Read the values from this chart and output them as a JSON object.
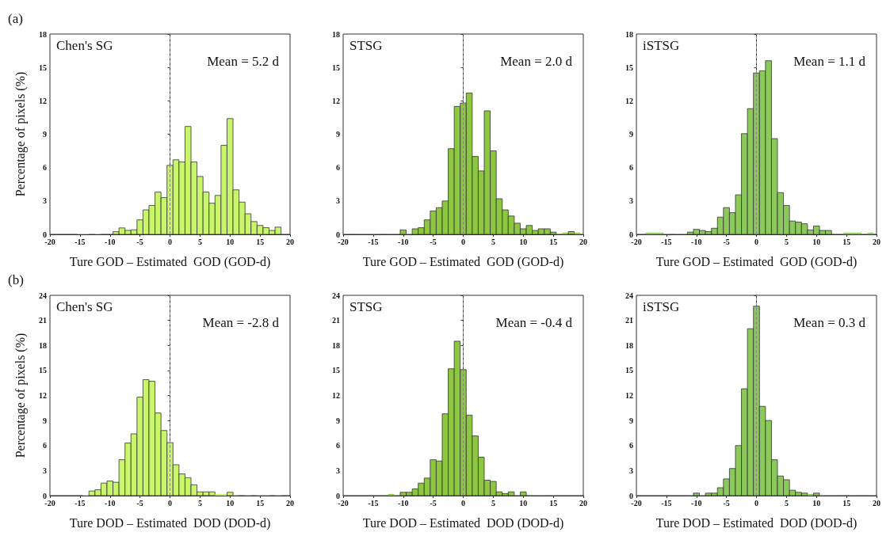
{
  "chart_data": [
    {
      "type": "histogram",
      "color": "#c8f56a",
      "ylabel": "Percentage of pixels (%)",
      "xlabel": "Ture GOD – Estimated  GOD (GOD-d)",
      "annotations": [
        "Chen's SG",
        "Mean = 5.2 d",
        "(a)"
      ],
      "bins": [
        -19.5,
        -18.5,
        -17.5,
        -16.5,
        -15.5,
        -14.5,
        -13.5,
        -12.5,
        -11.5,
        -10.5,
        -9.5,
        -8.5,
        -7.5,
        -6.5,
        -5.5,
        -4.5,
        -3.5,
        -2.5,
        -1.5,
        -0.5,
        0.5,
        1.5,
        2.5,
        3.5,
        4.5,
        5.5,
        6.5,
        7.5,
        8.5,
        9.5,
        10.5,
        11.5,
        12.5,
        13.5,
        14.5,
        15.5,
        16.5,
        17.5,
        18.5,
        19.5
      ],
      "values": [
        0,
        0,
        0,
        0,
        0.05,
        0.05,
        0,
        0.05,
        0,
        0,
        0.24,
        0.58,
        0.36,
        0.41,
        1.3,
        2.2,
        2.6,
        3.8,
        3.3,
        6.2,
        6.7,
        6.5,
        9.7,
        6.5,
        5.2,
        3.8,
        2.8,
        3.5,
        8.0,
        10.4,
        4.0,
        2.9,
        1.85,
        1.15,
        0.8,
        0.6,
        0.35,
        0.65,
        0
      ],
      "xlim": [
        -20,
        20
      ],
      "xticks": [
        -20,
        -15,
        -10,
        -5,
        0,
        5,
        10,
        15,
        20
      ],
      "ylim": [
        0,
        18
      ],
      "yticks": [
        0,
        3,
        6,
        9,
        12,
        15,
        18
      ],
      "ref_lines": [
        {
          "axis": "x",
          "value": 0,
          "color": "#888888",
          "line_style": "dashed"
        }
      ]
    },
    {
      "type": "histogram",
      "color": "#8dc63f",
      "xlabel": "Ture GOD – Estimated  GOD (GOD-d)",
      "annotations": [
        "STSG",
        "Mean = 2.0 d"
      ],
      "bins": [
        -19.5,
        -18.5,
        -17.5,
        -16.5,
        -15.5,
        -14.5,
        -13.5,
        -12.5,
        -11.5,
        -10.5,
        -9.5,
        -8.5,
        -7.5,
        -6.5,
        -5.5,
        -4.5,
        -3.5,
        -2.5,
        -1.5,
        -0.5,
        0.5,
        1.5,
        2.5,
        3.5,
        4.5,
        5.5,
        6.5,
        7.5,
        8.5,
        9.5,
        10.5,
        11.5,
        12.5,
        13.5,
        14.5,
        15.5,
        16.5,
        17.5,
        18.5,
        19.5
      ],
      "values": [
        0,
        0,
        0.05,
        0.05,
        0.05,
        0,
        0,
        0.05,
        0,
        0.4,
        0.05,
        0.5,
        0.6,
        1.3,
        2.1,
        2.4,
        3.0,
        7.7,
        11.5,
        11.8,
        12.7,
        7.0,
        5.7,
        11.1,
        7.5,
        3.2,
        2.2,
        1.65,
        1.0,
        0.5,
        0.8,
        0.35,
        0.5,
        0.5,
        0.2,
        0.05,
        0.15,
        0.25,
        0.15
      ],
      "xlim": [
        -20,
        20
      ],
      "xticks": [
        -20,
        -15,
        -10,
        -5,
        0,
        5,
        10,
        15,
        20
      ],
      "ylim": [
        0,
        18
      ],
      "yticks": [
        0,
        3,
        6,
        9,
        12,
        15,
        18
      ],
      "ref_lines": [
        {
          "axis": "x",
          "value": 0,
          "color": "#888888",
          "line_style": "dashed"
        }
      ]
    },
    {
      "type": "histogram",
      "color": "#8bc95a",
      "xlabel": "Ture GOD – Estimated  GOD (GOD-d)",
      "annotations": [
        "iSTSG",
        "Mean = 1.1 d"
      ],
      "bins": [
        -19.5,
        -18.5,
        -17.5,
        -16.5,
        -15.5,
        -14.5,
        -13.5,
        -12.5,
        -11.5,
        -10.5,
        -9.5,
        -8.5,
        -7.5,
        -6.5,
        -5.5,
        -4.5,
        -3.5,
        -2.5,
        -1.5,
        -0.5,
        0.5,
        1.5,
        2.5,
        3.5,
        4.5,
        5.5,
        6.5,
        7.5,
        8.5,
        9.5,
        10.5,
        11.5,
        12.5,
        13.5,
        14.5,
        15.5,
        16.5,
        17.5,
        18.5,
        19.5
      ],
      "values": [
        0,
        0.15,
        0.15,
        0.15,
        0.05,
        0,
        0.05,
        0.05,
        0.2,
        0.45,
        0.35,
        0.25,
        0.55,
        1.55,
        2.4,
        1.95,
        3.55,
        9.05,
        11.3,
        14.5,
        14.7,
        15.6,
        8.6,
        3.75,
        2.6,
        1.2,
        1.1,
        0.95,
        0.4,
        0.75,
        0.35,
        0.35,
        0,
        0,
        0.15,
        0.15,
        0.15,
        0,
        0.15
      ],
      "xlim": [
        -20,
        20
      ],
      "xticks": [
        -20,
        -15,
        -10,
        -5,
        0,
        5,
        10,
        15,
        20
      ],
      "ylim": [
        0,
        18
      ],
      "yticks": [
        0,
        3,
        6,
        9,
        12,
        15,
        18
      ],
      "ref_lines": [
        {
          "axis": "x",
          "value": 0,
          "color": "#888888",
          "line_style": "dashed"
        }
      ]
    },
    {
      "type": "histogram",
      "color": "#c8f56a",
      "ylabel": "Percentage of pixels (%)",
      "xlabel": "Ture DOD – Estimated  DOD (DOD-d)",
      "annotations": [
        "Chen's SG",
        "Mean = -2.8 d",
        "(b)"
      ],
      "bins": [
        -19.5,
        -18.5,
        -17.5,
        -16.5,
        -15.5,
        -14.5,
        -13.5,
        -12.5,
        -11.5,
        -10.5,
        -9.5,
        -8.5,
        -7.5,
        -6.5,
        -5.5,
        -4.5,
        -3.5,
        -2.5,
        -1.5,
        -0.5,
        0.5,
        1.5,
        2.5,
        3.5,
        4.5,
        5.5,
        6.5,
        7.5,
        8.5,
        9.5,
        10.5,
        11.5,
        12.5,
        13.5,
        14.5,
        15.5,
        16.5,
        17.5,
        18.5,
        19.5
      ],
      "values": [
        0,
        0,
        0,
        0,
        0,
        0.1,
        0.55,
        0.7,
        1.5,
        1.75,
        1.6,
        4.3,
        6.3,
        7.4,
        11.8,
        13.9,
        13.7,
        9.9,
        7.8,
        6.35,
        3.7,
        2.6,
        2.15,
        1.3,
        0.45,
        0.45,
        0.45,
        0.2,
        0.2,
        0.4,
        0.05,
        0,
        0.05,
        0,
        0.05,
        0.05,
        0,
        0.05,
        0
      ],
      "xlim": [
        -20,
        20
      ],
      "xticks": [
        -20,
        -15,
        -10,
        -5,
        0,
        5,
        10,
        15,
        20
      ],
      "ylim": [
        0,
        24
      ],
      "yticks": [
        0,
        3,
        6,
        9,
        12,
        15,
        18,
        21,
        24
      ],
      "ref_lines": [
        {
          "axis": "x",
          "value": 0,
          "color": "#888888",
          "line_style": "dashed"
        }
      ]
    },
    {
      "type": "histogram",
      "color": "#8dc63f",
      "xlabel": "Ture DOD – Estimated  DOD (DOD-d)",
      "annotations": [
        "STSG",
        "Mean = -0.4 d"
      ],
      "bins": [
        -19.5,
        -18.5,
        -17.5,
        -16.5,
        -15.5,
        -14.5,
        -13.5,
        -12.5,
        -11.5,
        -10.5,
        -9.5,
        -8.5,
        -7.5,
        -6.5,
        -5.5,
        -4.5,
        -3.5,
        -2.5,
        -1.5,
        -0.5,
        0.5,
        1.5,
        2.5,
        3.5,
        4.5,
        5.5,
        6.5,
        7.5,
        8.5,
        9.5,
        10.5,
        11.5,
        12.5,
        13.5,
        14.5,
        15.5,
        16.5,
        17.5,
        18.5,
        19.5
      ],
      "values": [
        0,
        0,
        0,
        0,
        0,
        0,
        0,
        0.2,
        0.1,
        0.4,
        0.4,
        0.8,
        1.5,
        2.1,
        4.3,
        4.15,
        9.8,
        15.2,
        18.5,
        15.1,
        9.65,
        7.15,
        4.6,
        1.85,
        1.7,
        0.45,
        0.25,
        0.45,
        0.05,
        0.45,
        0,
        0.05,
        0.05,
        0,
        0.05,
        0,
        0,
        0,
        0.05
      ],
      "xlim": [
        -20,
        20
      ],
      "xticks": [
        -20,
        -15,
        -10,
        -5,
        0,
        5,
        10,
        15,
        20
      ],
      "ylim": [
        0,
        24
      ],
      "yticks": [
        0,
        3,
        6,
        9,
        12,
        15,
        18,
        21,
        24
      ],
      "ref_lines": [
        {
          "axis": "x",
          "value": 0,
          "color": "#888888",
          "line_style": "dashed"
        }
      ]
    },
    {
      "type": "histogram",
      "color": "#8bc95a",
      "xlabel": "Ture DOD – Estimated  DOD (DOD-d)",
      "annotations": [
        "iSTSG",
        "Mean = 0.3 d"
      ],
      "bins": [
        -19.5,
        -18.5,
        -17.5,
        -16.5,
        -15.5,
        -14.5,
        -13.5,
        -12.5,
        -11.5,
        -10.5,
        -9.5,
        -8.5,
        -7.5,
        -6.5,
        -5.5,
        -4.5,
        -3.5,
        -2.5,
        -1.5,
        -0.5,
        0.5,
        1.5,
        2.5,
        3.5,
        4.5,
        5.5,
        6.5,
        7.5,
        8.5,
        9.5,
        10.5,
        11.5,
        12.5,
        13.5,
        14.5,
        15.5,
        16.5,
        17.5,
        18.5,
        19.5
      ],
      "values": [
        0,
        0,
        0,
        0,
        0,
        0,
        0,
        0,
        0.05,
        0.3,
        0.05,
        0.3,
        0.3,
        0.95,
        2.0,
        3.25,
        6.0,
        12.8,
        20.0,
        22.7,
        10.7,
        9.0,
        4.3,
        2.35,
        1.9,
        0.65,
        0.4,
        0.3,
        0.2,
        0.3,
        0.1,
        0.05,
        0.05,
        0,
        0,
        0.05,
        0,
        0,
        0.05
      ],
      "xlim": [
        -20,
        20
      ],
      "xticks": [
        -20,
        -15,
        -10,
        -5,
        0,
        5,
        10,
        15,
        20
      ],
      "ylim": [
        0,
        24
      ],
      "yticks": [
        0,
        3,
        6,
        9,
        12,
        15,
        18,
        21,
        24
      ],
      "ref_lines": [
        {
          "axis": "x",
          "value": 0,
          "color": "#888888",
          "line_style": "dashed"
        }
      ]
    }
  ]
}
